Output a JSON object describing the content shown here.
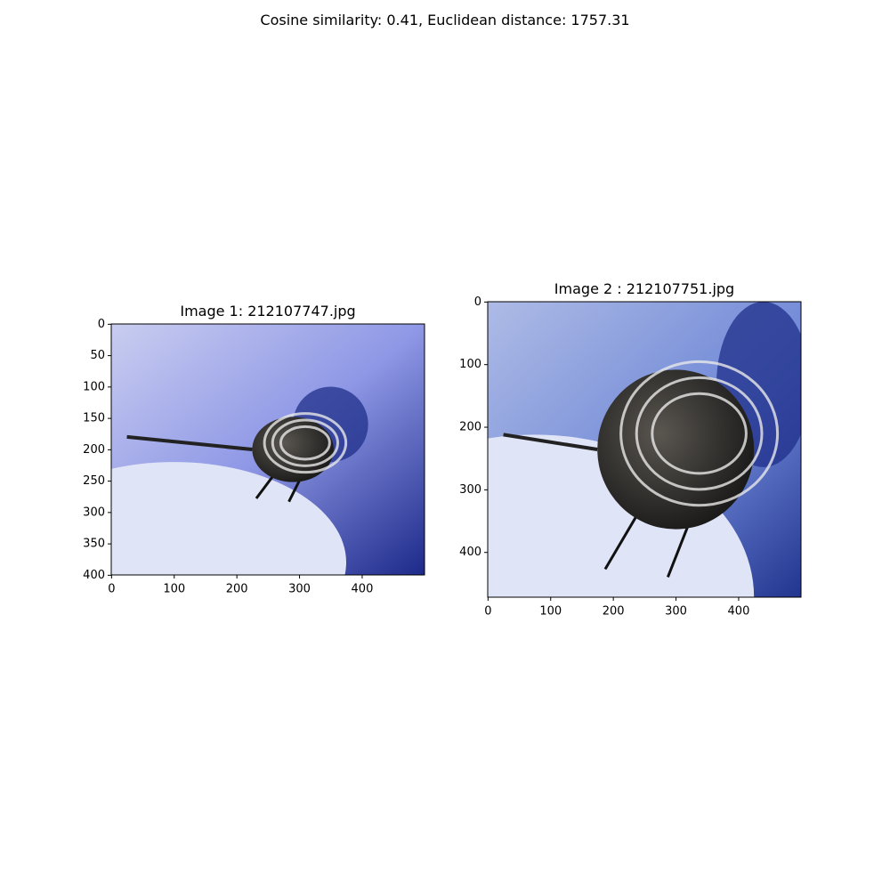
{
  "title": "Cosine similarity: 0.41, Euclidean distance: 1757.31",
  "chart_data": [
    {
      "type": "image",
      "title": "Image 1: 212107747.jpg",
      "xlim": [
        -0.5,
        499.5
      ],
      "ylim": [
        399.5,
        -0.5
      ],
      "xticks": [
        0,
        100,
        200,
        300,
        400
      ],
      "yticks": [
        0,
        50,
        100,
        150,
        200,
        250,
        300,
        350,
        400
      ]
    },
    {
      "type": "image",
      "title": "Image 2 : 212107751.jpg",
      "xlim": [
        -0.5,
        499.5
      ],
      "ylim": [
        471.5,
        -0.5
      ],
      "xticks": [
        0,
        100,
        200,
        300,
        400
      ],
      "yticks": [
        0,
        100,
        200,
        300,
        400
      ]
    }
  ]
}
